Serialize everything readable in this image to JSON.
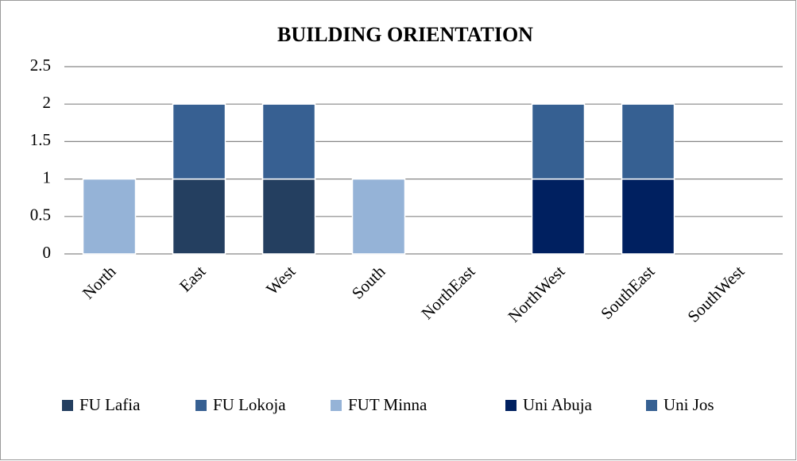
{
  "chart_data": {
    "type": "stacked_bar",
    "title": "BUILDING ORIENTATION",
    "categories": [
      "North",
      "East",
      "West",
      "South",
      "NorthEast",
      "NorthWest",
      "SouthEast",
      "SouthWest"
    ],
    "series": [
      {
        "name": "FU Lafia",
        "color": "#243f60",
        "values": [
          0,
          1,
          1,
          0,
          0,
          0,
          0,
          0
        ]
      },
      {
        "name": "FU Lokoja",
        "color": "#376092",
        "values": [
          0,
          1,
          1,
          0,
          0,
          0,
          0,
          0
        ]
      },
      {
        "name": "FUT Minna",
        "color": "#95b3d7",
        "values": [
          1,
          0,
          0,
          1,
          0,
          0,
          0,
          0
        ]
      },
      {
        "name": "Uni Abuja",
        "color": "#002060",
        "values": [
          0,
          0,
          0,
          0,
          0,
          1,
          1,
          0
        ]
      },
      {
        "name": "Uni Jos",
        "color": "#366092",
        "values": [
          0,
          0,
          0,
          0,
          0,
          1,
          1,
          0
        ]
      }
    ],
    "ylim": [
      0,
      2.5
    ],
    "yticks": [
      0,
      0.5,
      1,
      1.5,
      2,
      2.5
    ],
    "grid": true,
    "legend": "bottom"
  }
}
